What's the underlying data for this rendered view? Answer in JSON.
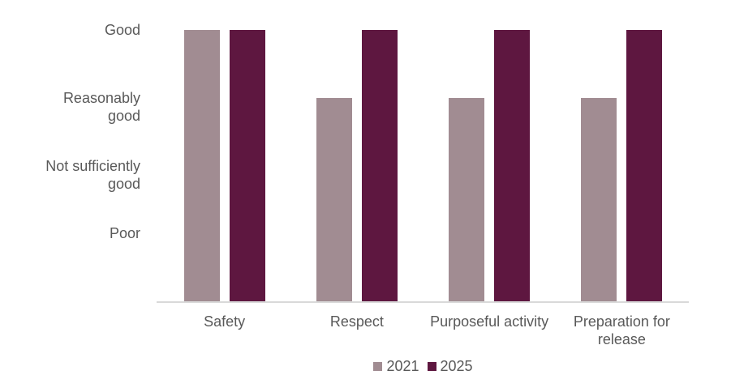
{
  "chart_data": {
    "type": "bar",
    "title": "",
    "categories": [
      "Safety",
      "Respect",
      "Purposeful activity",
      "Preparation for release"
    ],
    "series": [
      {
        "name": "2021",
        "color": "#A18C92",
        "values": [
          4,
          3,
          3,
          3
        ]
      },
      {
        "name": "2025",
        "color": "#5E1740",
        "values": [
          4,
          4,
          4,
          4
        ]
      }
    ],
    "yticks": [
      {
        "value": 4,
        "label": "Good"
      },
      {
        "value": 3,
        "label": "Reasonably\ngood"
      },
      {
        "value": 2,
        "label": "Not sufficiently\ngood"
      },
      {
        "value": 1,
        "label": "Poor"
      }
    ],
    "value_scale": {
      "min": 0,
      "max": 4
    },
    "xlabel": "",
    "ylabel": "",
    "grid": false,
    "legend_position": "bottom",
    "axis_line_color": "#D9D9D9",
    "text_color": "#595959",
    "background_color": "#FFFFFF"
  }
}
